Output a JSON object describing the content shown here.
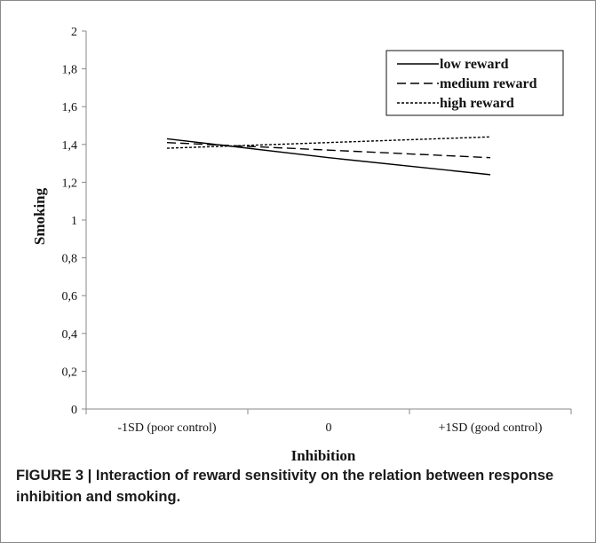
{
  "caption": {
    "label": "FIGURE 3 |",
    "text": "Interaction of reward sensitivity on the relation between response inhibition and smoking."
  },
  "chart_data": {
    "type": "line",
    "title": "",
    "xlabel": "Inhibition",
    "ylabel": "Smoking",
    "categories": [
      "-1SD (poor control)",
      "0",
      "+1SD (good control)"
    ],
    "ylim": [
      0,
      2
    ],
    "yticks": [
      "0",
      "0,2",
      "0,4",
      "0,6",
      "0,8",
      "1",
      "1,2",
      "1,4",
      "1,6",
      "1,8",
      "2"
    ],
    "grid": false,
    "legend_position": "top-right",
    "series": [
      {
        "name": "low reward",
        "dash": "solid",
        "color": "#000000",
        "values": [
          1.43,
          1.33,
          1.24
        ]
      },
      {
        "name": "medium reward",
        "dash": "long-dash",
        "color": "#000000",
        "values": [
          1.41,
          1.37,
          1.33
        ]
      },
      {
        "name": "high reward",
        "dash": "dotted",
        "color": "#000000",
        "values": [
          1.38,
          1.41,
          1.44
        ]
      }
    ]
  }
}
